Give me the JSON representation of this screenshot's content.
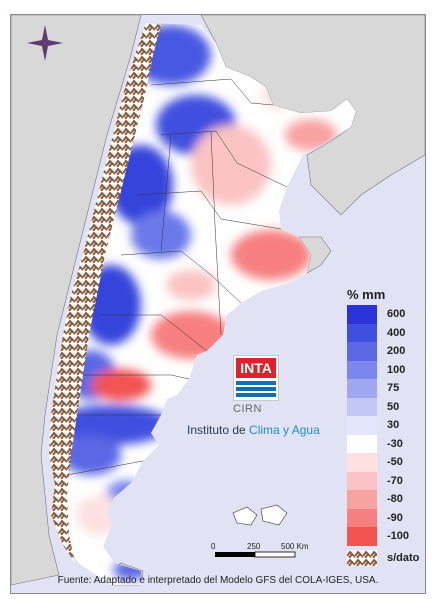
{
  "legend": {
    "unit": "% mm",
    "items": [
      {
        "label": "600",
        "color": "#2a34d8"
      },
      {
        "label": "400",
        "color": "#3f4fdf"
      },
      {
        "label": "200",
        "color": "#5a68e5"
      },
      {
        "label": "100",
        "color": "#7b87ec"
      },
      {
        "label": "75",
        "color": "#9ea7f1"
      },
      {
        "label": "50",
        "color": "#c2c8f6"
      },
      {
        "label": "30",
        "color": "#e4e6fb"
      },
      {
        "label": "-30",
        "color": "#ffffff"
      },
      {
        "label": "-50",
        "color": "#fde1e1"
      },
      {
        "label": "-70",
        "color": "#fbc3c3"
      },
      {
        "label": "-80",
        "color": "#f9a2a2"
      },
      {
        "label": "-90",
        "color": "#f77f7f"
      },
      {
        "label": "-100",
        "color": "#f25353"
      }
    ],
    "no_data_label": "s/dato"
  },
  "logo": {
    "text": "INTA",
    "cirn": "CIRN",
    "instituto_prefix": "Instituto de ",
    "instituto_highlight": "Clima y Agua"
  },
  "scale_bar": {
    "labels": [
      "0",
      "250",
      "500 Km"
    ]
  },
  "source": "Fuente: Adaptado e interpretado del Modelo GFS del COLA-IGES, USA.",
  "icons": [
    "compass-rose-icon"
  ]
}
